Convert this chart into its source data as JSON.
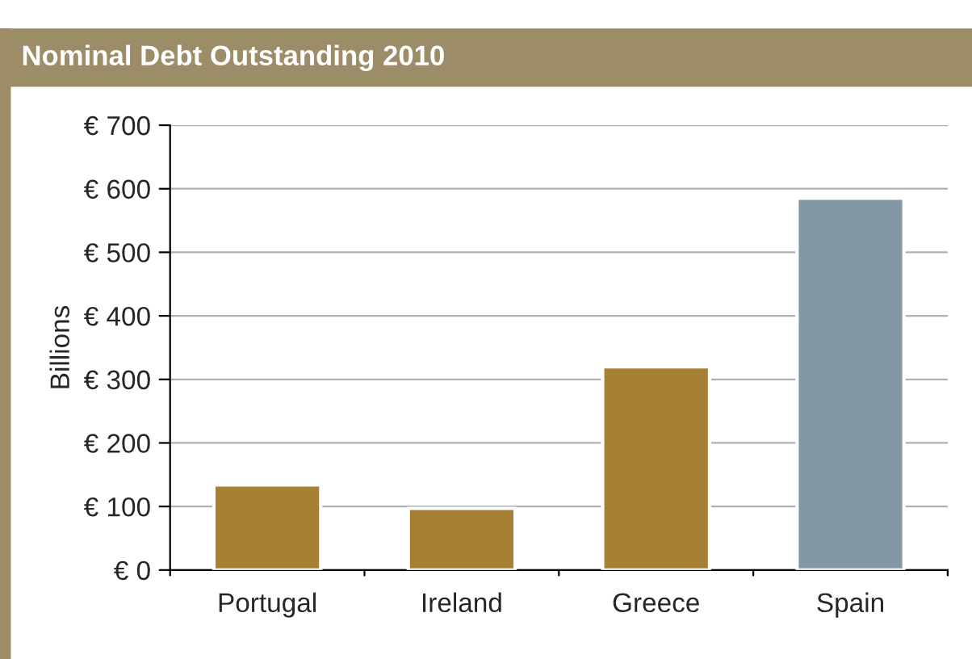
{
  "chart_data": {
    "type": "bar",
    "title": "Nominal Debt Outstanding 2010",
    "ylabel": "Billions",
    "categories": [
      "Portugal",
      "Ireland",
      "Greece",
      "Spain"
    ],
    "values": [
      134,
      97,
      320,
      585
    ],
    "colors": [
      "#a68034",
      "#a68034",
      "#a68034",
      "#8298a4"
    ],
    "ylim": [
      0,
      700
    ],
    "yticks": [
      {
        "value": 0,
        "label": "€ 0"
      },
      {
        "value": 100,
        "label": "€ 100"
      },
      {
        "value": 200,
        "label": "€ 200"
      },
      {
        "value": 300,
        "label": "€ 300"
      },
      {
        "value": 400,
        "label": "€ 400"
      },
      {
        "value": 500,
        "label": "€ 500"
      },
      {
        "value": 600,
        "label": "€ 600"
      },
      {
        "value": 700,
        "label": "€ 700"
      }
    ],
    "grid": "y"
  }
}
